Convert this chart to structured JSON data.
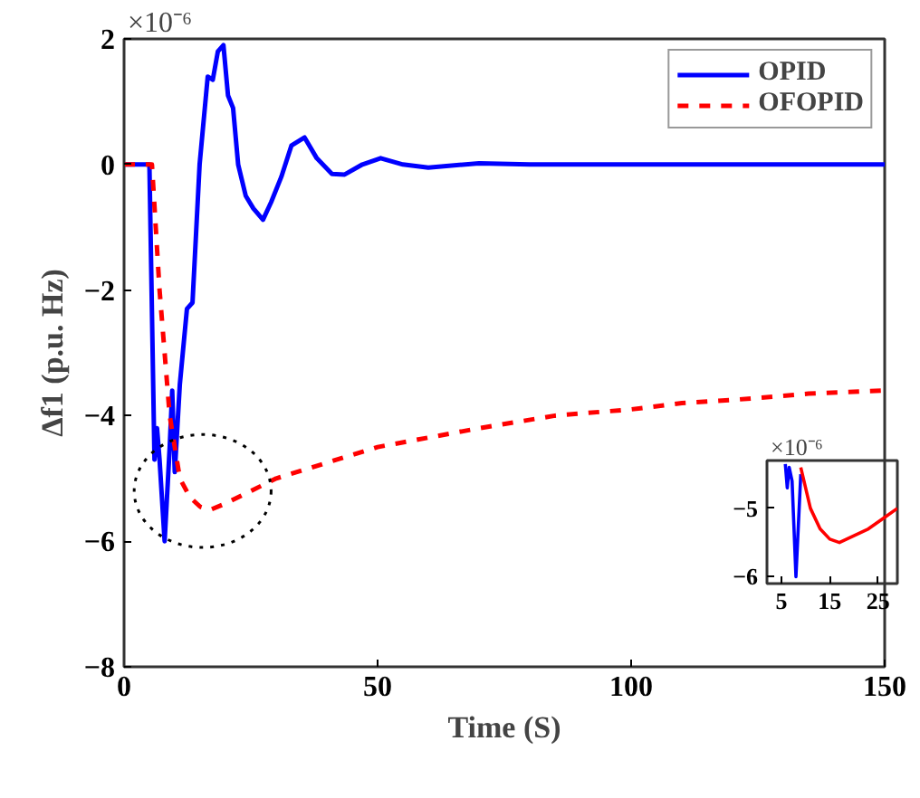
{
  "chart_data": [
    {
      "type": "line",
      "xlabel": "Time (S)",
      "ylabel": "Δf1 (p.u. Hz)",
      "annotations": [
        "×10⁻⁶"
      ],
      "xlim": [
        0,
        150
      ],
      "ylim": [
        -8,
        2
      ],
      "xticks": [
        0,
        50,
        100,
        150
      ],
      "yticks": [
        -8,
        -6,
        -4,
        -2,
        0,
        2
      ],
      "grid": false,
      "legend": "top right",
      "series": [
        {
          "name": "OPID",
          "color": "#0000ff",
          "line_style": "solid",
          "x": [
            0,
            5,
            6,
            6.5,
            7,
            8,
            9,
            9.5,
            10,
            11,
            12.4,
            13.5,
            14.9,
            16.5,
            17.5,
            18.5,
            19.6,
            20.5,
            21.5,
            22.5,
            24,
            25.5,
            27.4,
            29,
            31,
            33,
            35.6,
            38,
            41,
            43.5,
            47,
            50.6,
            55,
            60,
            70,
            80,
            100,
            150
          ],
          "values": [
            0,
            0,
            -4.7,
            -4.2,
            -4.7,
            -6,
            -4.5,
            -3.6,
            -4.9,
            -3.5,
            -2.3,
            -2.2,
            0,
            1.4,
            1.35,
            1.8,
            1.9,
            1.1,
            0.9,
            0,
            -0.5,
            -0.7,
            -0.88,
            -0.6,
            -0.2,
            0.3,
            0.43,
            0.1,
            -0.15,
            -0.16,
            0,
            0.1,
            0,
            -0.05,
            0.02,
            0,
            0,
            0
          ]
        },
        {
          "name": "OFOPID",
          "color": "#ff0000",
          "line_style": "dashed",
          "x": [
            0,
            5.5,
            7,
            9,
            11,
            13,
            15,
            17,
            20,
            25,
            30,
            40,
            50,
            60,
            70,
            85,
            100,
            110,
            120,
            135,
            150
          ],
          "values": [
            0,
            0,
            -2,
            -4,
            -5,
            -5.3,
            -5.45,
            -5.5,
            -5.4,
            -5.2,
            -5,
            -4.75,
            -4.5,
            -4.35,
            -4.2,
            -4,
            -3.9,
            -3.8,
            -3.75,
            -3.65,
            -3.6
          ]
        }
      ]
    },
    {
      "type": "line",
      "annotations": [
        "×10⁻⁶"
      ],
      "xlim": [
        2,
        29
      ],
      "ylim": [
        -6.1,
        -4.3
      ],
      "xticks": [
        5,
        15,
        25
      ],
      "yticks": [
        -6,
        -5
      ],
      "grid": false,
      "legend": false,
      "series": [
        {
          "color": "#0000ff",
          "line_style": "solid",
          "x": [
            5.8,
            6.2,
            6.6,
            7.2,
            8,
            9
          ],
          "values": [
            -4.35,
            -4.7,
            -4.4,
            -4.6,
            -6.0,
            -4.5
          ]
        },
        {
          "color": "#ff0000",
          "line_style": "solid",
          "x": [
            9,
            11,
            13,
            15,
            17,
            20,
            23,
            26,
            29
          ],
          "values": [
            -4.4,
            -5,
            -5.3,
            -5.45,
            -5.5,
            -5.4,
            -5.3,
            -5.15,
            -5
          ]
        }
      ]
    }
  ]
}
